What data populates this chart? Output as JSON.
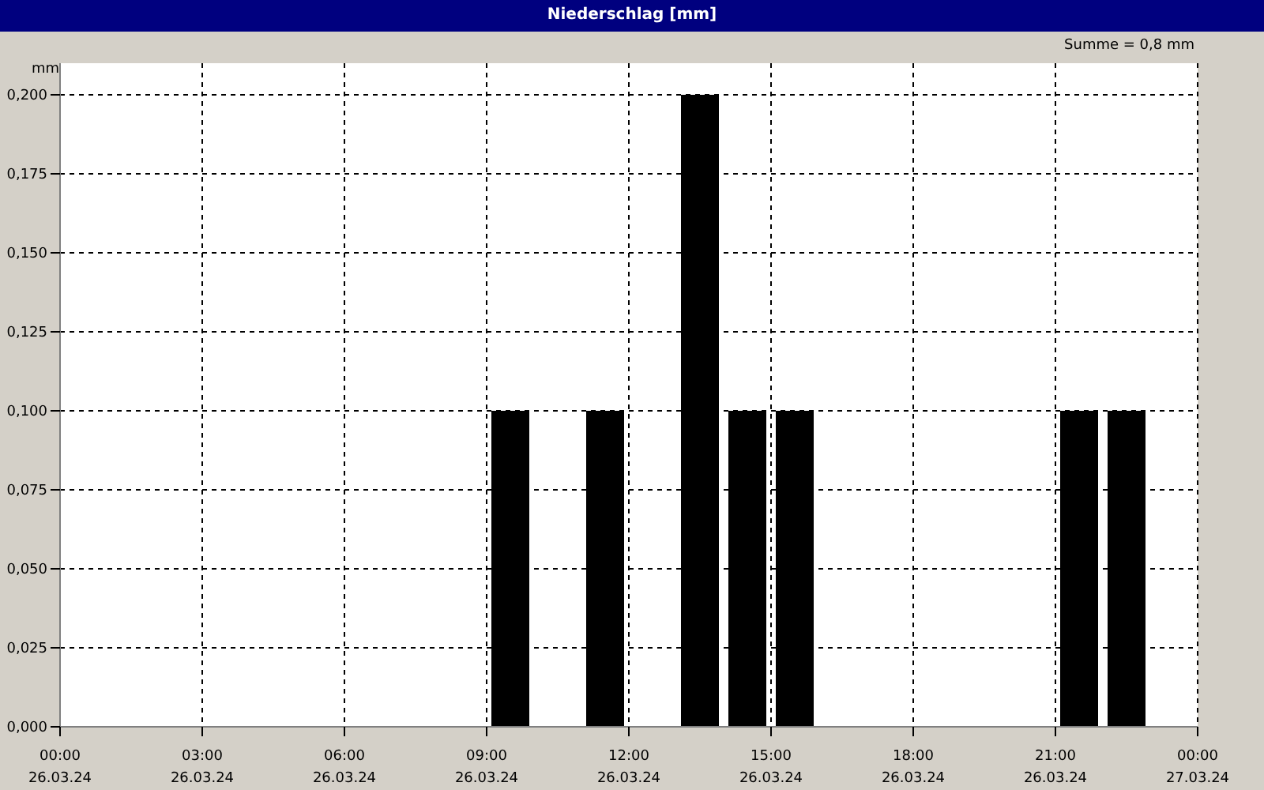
{
  "chart_data": {
    "type": "bar",
    "title": "Niederschlag [mm]",
    "ylabel": "mm",
    "annotations": [
      "Summe = 0,8 mm"
    ],
    "x": [
      "--03-26T09:30",
      "--03-26T11:30",
      "--03-26T13:30",
      "--03-26T14:30",
      "--03-26T15:30",
      "--03-26T21:30",
      "--03-26T22:30"
    ],
    "values": [
      0.1,
      0.1,
      0.2,
      0.1,
      0.1,
      0.1,
      0.1
    ],
    "color": "#000000",
    "xlim": [
      "--03-26T00:00",
      "--03-27T00:00"
    ],
    "xticks": [
      {
        "value": "--03-26T00:00",
        "label": "00:00\n26.03.24"
      },
      {
        "value": "--03-26T03:00",
        "label": "03:00\n26.03.24"
      },
      {
        "value": "--03-26T06:00",
        "label": "06:00\n26.03.24"
      },
      {
        "value": "--03-26T09:00",
        "label": "09:00\n26.03.24"
      },
      {
        "value": "--03-26T12:00",
        "label": "12:00\n26.03.24"
      },
      {
        "value": "--03-26T15:00",
        "label": "15:00\n26.03.24"
      },
      {
        "value": "--03-26T18:00",
        "label": "18:00\n26.03.24"
      },
      {
        "value": "--03-26T21:00",
        "label": "21:00\n26.03.24"
      },
      {
        "value": "--03-27T00:00",
        "label": "00:00\n27.03.24"
      }
    ],
    "ylim": [
      0,
      0.21
    ],
    "yticks": [
      {
        "value": 0,
        "label": "0,000"
      },
      {
        "value": 0.025,
        "label": "0,025"
      },
      {
        "value": 0.05,
        "label": "0,050"
      },
      {
        "value": 0.075,
        "label": "0,075"
      },
      {
        "value": 0.1,
        "label": "0,100"
      },
      {
        "value": 0.125,
        "label": "0,125"
      },
      {
        "value": 0.15,
        "label": "0,150"
      },
      {
        "value": 0.175,
        "label": "0,175"
      },
      {
        "value": 0.2,
        "label": "0,200"
      }
    ],
    "grid": true
  }
}
